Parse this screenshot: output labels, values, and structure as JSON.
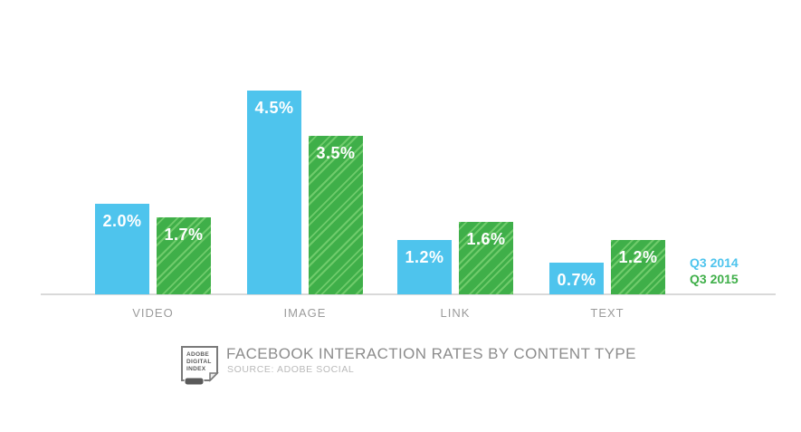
{
  "chart_data": {
    "type": "bar",
    "title": "FACEBOOK INTERACTION RATES BY CONTENT TYPE",
    "source": "SOURCE: ADOBE SOCIAL",
    "categories": [
      "VIDEO",
      "IMAGE",
      "LINK",
      "TEXT"
    ],
    "series": [
      {
        "name": "Q3 2014",
        "color": "#4EC4ED",
        "values": [
          2.0,
          4.5,
          1.2,
          0.7
        ],
        "labels": [
          "2.0%",
          "4.5%",
          "1.2%",
          "0.7%"
        ]
      },
      {
        "name": "Q3 2015",
        "color": "#3FAF49",
        "stripe_color": "#6FCB6B",
        "pattern": "diagonal-stripes",
        "values": [
          1.7,
          3.5,
          1.6,
          1.2
        ],
        "labels": [
          "1.7%",
          "3.5%",
          "1.6%",
          "1.2%"
        ]
      }
    ],
    "value_unit": "%",
    "ylim": [
      0,
      5
    ],
    "grid": false,
    "axis_line_color": "#D9D9D9",
    "category_label_color": "#9B9B9B",
    "legend_position": "right-of-plot"
  },
  "footer": {
    "logo": {
      "lines": [
        "ADOBE",
        "DIGITAL",
        "INDEX"
      ]
    },
    "title_color": "#8C8C8C",
    "source_color": "#B9B9B9"
  }
}
